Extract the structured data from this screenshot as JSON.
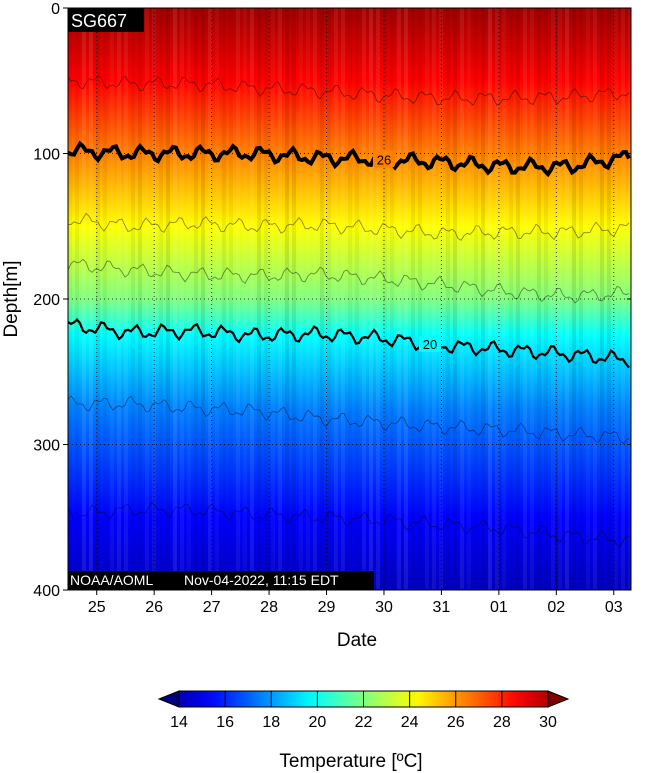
{
  "chart_data": {
    "type": "heatmap",
    "title": "SG667",
    "credit": "NOAA/AOML",
    "timestamp": "Nov-04-2022, 11:15 EDT",
    "xlabel": "Date",
    "ylabel": "Depth[m]",
    "x_ticks": [
      "25",
      "26",
      "27",
      "28",
      "29",
      "30",
      "31",
      "01",
      "02",
      "03"
    ],
    "x_range_days": [
      24.5,
      34.3
    ],
    "y_ticks": [
      0,
      100,
      200,
      300,
      400
    ],
    "ylim": [
      400,
      0
    ],
    "grid": true,
    "colorbar": {
      "label": "Temperature [ºC]",
      "ticks": [
        14,
        16,
        18,
        20,
        22,
        24,
        26,
        28,
        30
      ],
      "range": [
        14,
        30
      ],
      "extend": "both"
    },
    "temperature_profile": {
      "depth": [
        0,
        50,
        100,
        150,
        175,
        200,
        225,
        275,
        350,
        400
      ],
      "temperature": [
        29.5,
        28.0,
        26.0,
        24.0,
        23.0,
        22.0,
        20.0,
        18.0,
        16.0,
        15.0
      ]
    },
    "contours": [
      {
        "level": 26,
        "labeled": true,
        "bold": true,
        "depth": [
          98,
          100,
          100,
          100,
          103,
          104,
          106,
          109,
          109,
          102
        ]
      },
      {
        "level": 20,
        "labeled": true,
        "bold": false,
        "depth": [
          218,
          223,
          222,
          225,
          224,
          227,
          232,
          235,
          238,
          242
        ]
      },
      {
        "level": 28,
        "labeled": false,
        "depth": [
          50,
          52,
          52,
          55,
          57,
          60,
          62,
          62,
          61,
          58
        ]
      },
      {
        "level": 24,
        "labeled": false,
        "depth": [
          145,
          150,
          148,
          150,
          149,
          152,
          155,
          154,
          154,
          151
        ]
      },
      {
        "level": 23,
        "labeled": false,
        "depth": [
          176,
          180,
          183,
          184,
          183,
          186,
          190,
          195,
          198,
          196
        ]
      },
      {
        "level": 18,
        "labeled": false,
        "depth": [
          272,
          272,
          275,
          277,
          282,
          285,
          288,
          290,
          293,
          295
        ]
      },
      {
        "level": 16,
        "labeled": false,
        "depth": [
          348,
          345,
          345,
          348,
          350,
          352,
          355,
          358,
          363,
          366
        ]
      }
    ]
  }
}
